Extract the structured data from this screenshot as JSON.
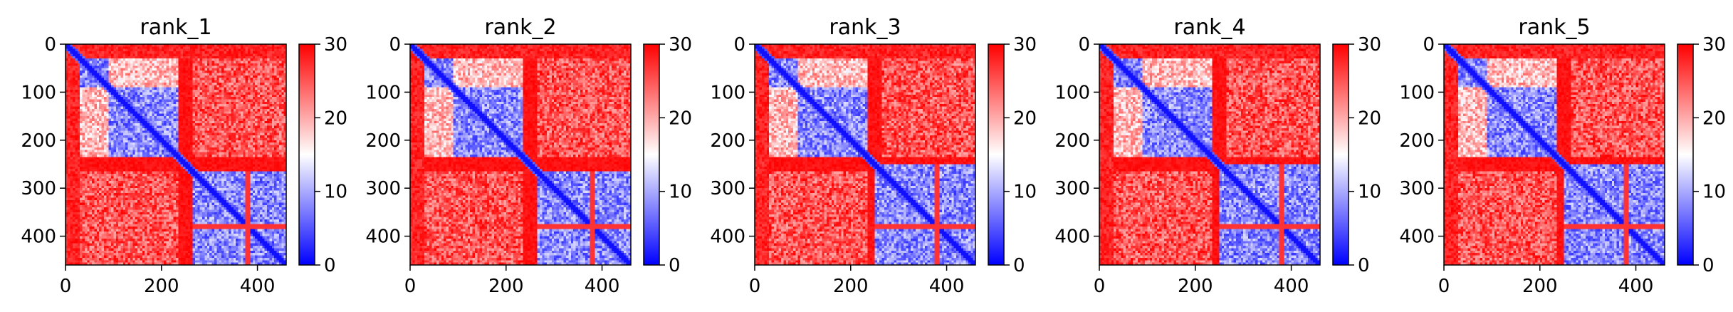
{
  "chart_data": [
    {
      "type": "heatmap",
      "title": "rank_1",
      "x_ticks": [
        "0",
        "200",
        "400"
      ],
      "y_ticks": [
        "0",
        "100",
        "200",
        "300",
        "400"
      ],
      "xlim": [
        0,
        460
      ],
      "ylim": [
        460,
        0
      ],
      "colorbar": {
        "ticks": [
          "0",
          "10",
          "20",
          "30"
        ],
        "range": [
          0,
          30
        ],
        "cmap": "bwr"
      },
      "blocks": [
        [
          30,
          90
        ],
        [
          90,
          235
        ],
        [
          265,
          460
        ]
      ]
    },
    {
      "type": "heatmap",
      "title": "rank_2",
      "x_ticks": [
        "0",
        "200",
        "400"
      ],
      "y_ticks": [
        "0",
        "100",
        "200",
        "300",
        "400"
      ],
      "xlim": [
        0,
        460
      ],
      "ylim": [
        460,
        0
      ],
      "colorbar": {
        "ticks": [
          "0",
          "10",
          "20",
          "30"
        ],
        "range": [
          0,
          30
        ],
        "cmap": "bwr"
      },
      "blocks": [
        [
          30,
          90
        ],
        [
          90,
          235
        ],
        [
          265,
          460
        ]
      ]
    },
    {
      "type": "heatmap",
      "title": "rank_3",
      "x_ticks": [
        "0",
        "200",
        "400"
      ],
      "y_ticks": [
        "0",
        "100",
        "200",
        "300",
        "400"
      ],
      "xlim": [
        0,
        460
      ],
      "ylim": [
        460,
        0
      ],
      "colorbar": {
        "ticks": [
          "0",
          "10",
          "20",
          "30"
        ],
        "range": [
          0,
          30
        ],
        "cmap": "bwr"
      },
      "blocks": [
        [
          30,
          90
        ],
        [
          90,
          235
        ],
        [
          250,
          460
        ]
      ]
    },
    {
      "type": "heatmap",
      "title": "rank_4",
      "x_ticks": [
        "0",
        "200",
        "400"
      ],
      "y_ticks": [
        "0",
        "100",
        "200",
        "300",
        "400"
      ],
      "xlim": [
        0,
        460
      ],
      "ylim": [
        460,
        0
      ],
      "colorbar": {
        "ticks": [
          "0",
          "10",
          "20",
          "30"
        ],
        "range": [
          0,
          30
        ],
        "cmap": "bwr"
      },
      "blocks": [
        [
          30,
          90
        ],
        [
          90,
          235
        ],
        [
          250,
          460
        ]
      ]
    },
    {
      "type": "heatmap",
      "title": "rank_5",
      "x_ticks": [
        "0",
        "200",
        "400"
      ],
      "y_ticks": [
        "0",
        "100",
        "200",
        "300",
        "400"
      ],
      "xlim": [
        0,
        460
      ],
      "ylim": [
        460,
        0
      ],
      "colorbar": {
        "ticks": [
          "0",
          "10",
          "20",
          "30"
        ],
        "range": [
          0,
          30
        ],
        "cmap": "bwr"
      },
      "blocks": [
        [
          30,
          90
        ],
        [
          90,
          235
        ],
        [
          250,
          460
        ]
      ]
    }
  ],
  "colors": {
    "low": "#0000ff",
    "mid": "#ffffff",
    "high": "#ff0000"
  }
}
